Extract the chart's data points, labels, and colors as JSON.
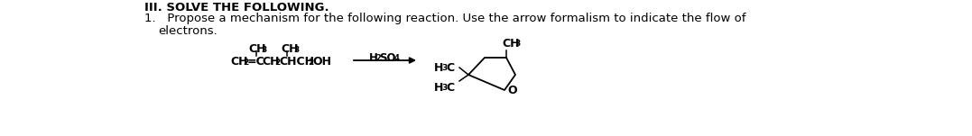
{
  "bg_color": "#ffffff",
  "text_color": "#000000",
  "figsize": [
    10.77,
    1.51
  ],
  "dpi": 100,
  "header": "III. SOLVE THE FOLLOWING.",
  "line1": "1.   Propose a mechanism for the following reaction. Use the arrow formalism to indicate the flow of",
  "line2": "     electrons.",
  "reactant_ch2": "CH",
  "reactant_eq": "=CCH",
  "reactant_rest": "CHCH",
  "reactant_oh": "OH",
  "ch3_top1": "CH",
  "ch3_top2": "CH",
  "reagent_h2so4": "H",
  "reagent_so4": "SO",
  "product_ch3_top": "CH",
  "product_h3c_ul": "H",
  "product_c_ul": "C",
  "product_h3c_ll": "H",
  "product_c_ll": "C",
  "product_o": "O"
}
